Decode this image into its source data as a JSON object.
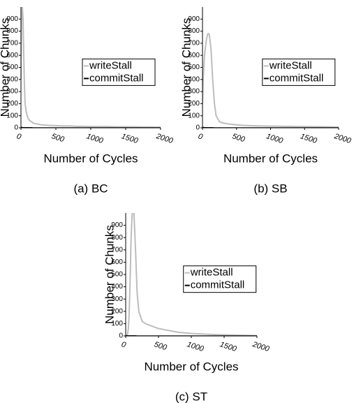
{
  "chart_data": [
    {
      "type": "line",
      "caption": "(a) BC",
      "xlabel": "Number of Cycles",
      "ylabel": "Number of Chunks",
      "x": [
        0,
        10,
        20,
        30,
        40,
        50,
        60,
        70,
        80,
        90,
        100,
        125,
        150,
        175,
        200,
        250,
        300,
        400,
        500,
        600,
        700,
        800,
        900,
        1000,
        1200,
        1400,
        1600,
        1800,
        2000
      ],
      "series": [
        {
          "name": "writeStall",
          "color": "#bdbdbd",
          "values": [
            400,
            1000,
            1000,
            900,
            600,
            350,
            200,
            150,
            120,
            100,
            80,
            60,
            50,
            40,
            35,
            30,
            25,
            20,
            18,
            15,
            15,
            12,
            12,
            10,
            10,
            8,
            8,
            6,
            5
          ]
        },
        {
          "name": "commitStall",
          "color": "#000000",
          "values": [
            5,
            4,
            3,
            2,
            2,
            1,
            1,
            1,
            1,
            1,
            1,
            1,
            1,
            0,
            0,
            0,
            0,
            0,
            0,
            0,
            0,
            0,
            0,
            0,
            0,
            0,
            0,
            0,
            0
          ]
        }
      ],
      "xlim": [
        0,
        2000
      ],
      "xticks": [
        0,
        500,
        1000,
        1500,
        2000
      ],
      "ylim": [
        0,
        1000
      ],
      "yticks": [
        0,
        100,
        200,
        300,
        400,
        500,
        600,
        700,
        800,
        900
      ],
      "legend": "right"
    },
    {
      "type": "line",
      "caption": "(b) SB",
      "xlabel": "Number of Cycles",
      "ylabel": "Number of Chunks",
      "x": [
        0,
        10,
        20,
        30,
        40,
        50,
        60,
        70,
        80,
        90,
        100,
        125,
        150,
        175,
        200,
        250,
        300,
        400,
        500,
        600,
        700,
        800,
        900,
        1000,
        1200,
        1400,
        1600,
        1800,
        2000
      ],
      "series": [
        {
          "name": "writeStall",
          "color": "#bdbdbd",
          "values": [
            200,
            400,
            500,
            600,
            650,
            700,
            740,
            760,
            780,
            780,
            770,
            650,
            400,
            200,
            100,
            50,
            40,
            30,
            25,
            20,
            18,
            16,
            15,
            14,
            12,
            10,
            9,
            8,
            6
          ]
        },
        {
          "name": "commitStall",
          "color": "#000000",
          "values": [
            5,
            4,
            3,
            2,
            2,
            1,
            1,
            1,
            1,
            1,
            1,
            1,
            1,
            0,
            0,
            0,
            0,
            0,
            0,
            0,
            0,
            0,
            0,
            0,
            0,
            0,
            0,
            0,
            0
          ]
        }
      ],
      "xlim": [
        0,
        2000
      ],
      "xticks": [
        0,
        500,
        1000,
        1500,
        2000
      ],
      "ylim": [
        0,
        1000
      ],
      "yticks": [
        0,
        100,
        200,
        300,
        400,
        500,
        600,
        700,
        800,
        900
      ],
      "legend": "right"
    },
    {
      "type": "line",
      "caption": "(c) ST",
      "xlabel": "Number of Cycles",
      "ylabel": "Number of Chunks",
      "x": [
        0,
        10,
        20,
        30,
        40,
        50,
        60,
        70,
        80,
        90,
        100,
        125,
        150,
        175,
        200,
        250,
        300,
        400,
        500,
        600,
        700,
        800,
        900,
        1000,
        1200,
        1400,
        1600,
        1800,
        2000
      ],
      "series": [
        {
          "name": "writeStall",
          "color": "#bdbdbd",
          "values": [
            0,
            0,
            5,
            20,
            60,
            150,
            300,
            500,
            750,
            900,
            1000,
            1000,
            700,
            350,
            200,
            120,
            100,
            80,
            60,
            50,
            40,
            30,
            25,
            20,
            15,
            10,
            8,
            5,
            3
          ]
        },
        {
          "name": "commitStall",
          "color": "#000000",
          "values": [
            2,
            2,
            2,
            1,
            1,
            1,
            1,
            1,
            1,
            1,
            1,
            1,
            1,
            0,
            0,
            0,
            0,
            0,
            0,
            0,
            0,
            0,
            0,
            0,
            0,
            0,
            0,
            0,
            0
          ]
        }
      ],
      "xlim": [
        0,
        2000
      ],
      "xticks": [
        0,
        500,
        1000,
        1500,
        2000
      ],
      "ylim": [
        0,
        1000
      ],
      "yticks": [
        0,
        100,
        200,
        300,
        400,
        500,
        600,
        700,
        800,
        900
      ],
      "legend": "right"
    }
  ]
}
